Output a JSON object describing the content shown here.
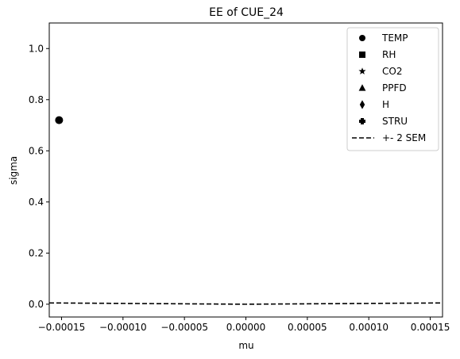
{
  "chart_data": {
    "type": "scatter",
    "title": "EE of CUE_24",
    "xlabel": "mu",
    "ylabel": "sigma",
    "xlim": [
      -0.00016,
      0.00016
    ],
    "ylim": [
      -0.05,
      1.1
    ],
    "xticks": [
      -0.00015,
      -0.0001,
      -5e-05,
      0.0,
      5e-05,
      0.0001,
      0.00015
    ],
    "xtick_labels": [
      "−0.00015",
      "−0.00010",
      "−0.00005",
      "0.00000",
      "0.00005",
      "0.00010",
      "0.00015"
    ],
    "yticks": [
      0.0,
      0.2,
      0.4,
      0.6,
      0.8,
      1.0
    ],
    "ytick_labels": [
      "0.0",
      "0.2",
      "0.4",
      "0.6",
      "0.8",
      "1.0"
    ],
    "grid": false,
    "legend_position": "top-right",
    "series": [
      {
        "name": "TEMP",
        "marker": "circle",
        "points": [
          [
            -0.000152,
            0.72
          ]
        ]
      },
      {
        "name": "RH",
        "marker": "square",
        "points": []
      },
      {
        "name": "CO2",
        "marker": "star",
        "points": []
      },
      {
        "name": "PPFD",
        "marker": "triangle",
        "points": []
      },
      {
        "name": "H",
        "marker": "diamond",
        "points": []
      },
      {
        "name": "STRU",
        "marker": "plus",
        "points": []
      }
    ],
    "lines": [
      {
        "name": "+- 2 SEM",
        "style": "dashed",
        "x": [
          -0.00016,
          0.0,
          0.00016
        ],
        "y": [
          0.005,
          0.0,
          0.005
        ]
      }
    ],
    "colors": {
      "marker": "#000000",
      "line": "#000000",
      "axes": "#000000",
      "legend_border": "#cccccc"
    }
  }
}
